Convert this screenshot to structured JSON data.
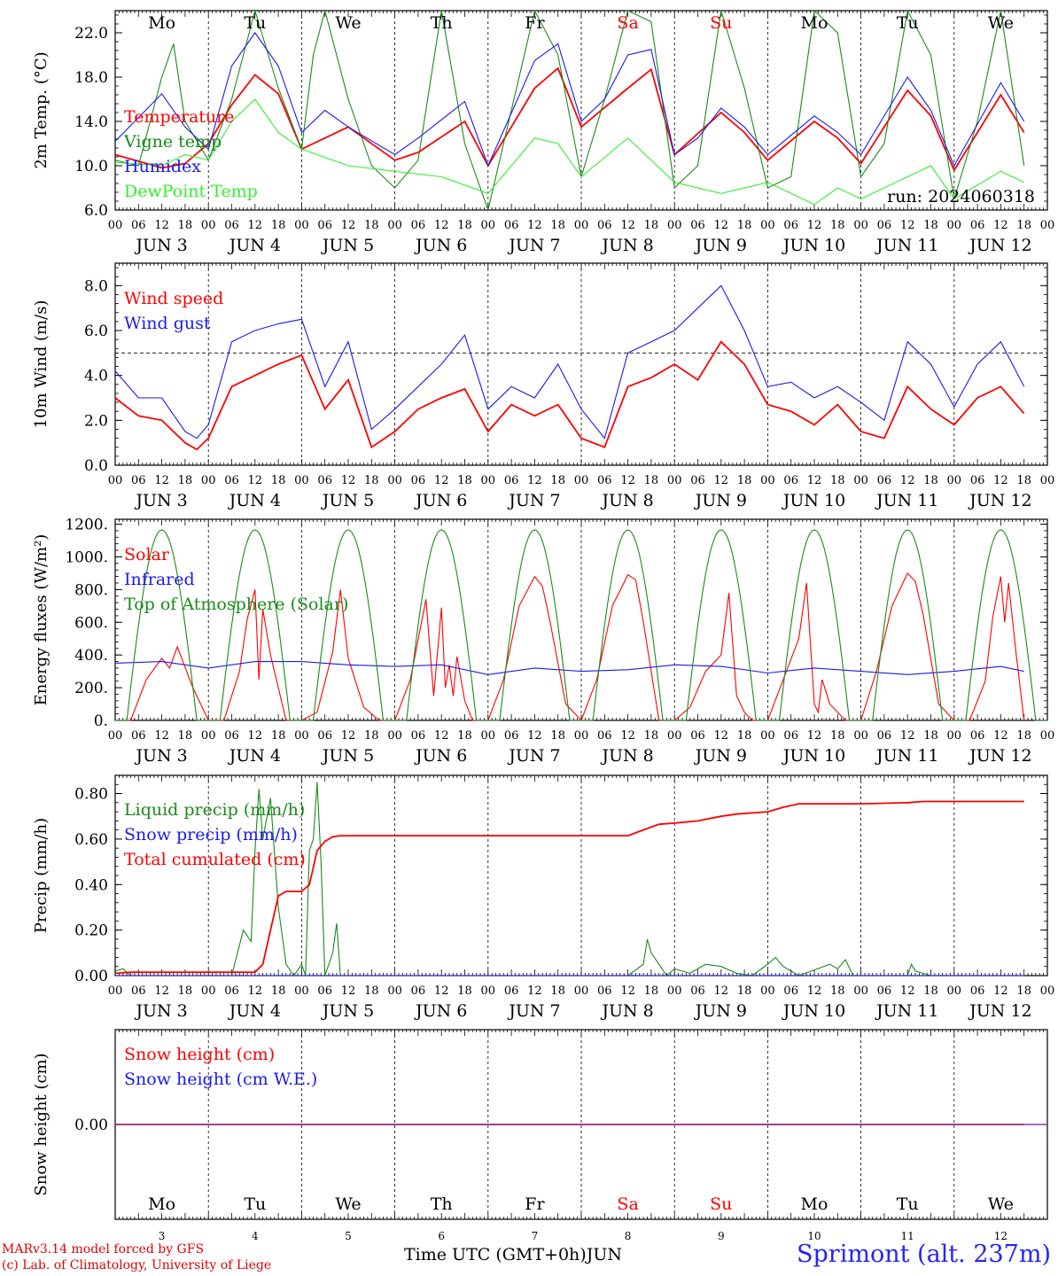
{
  "run_label": "run: 2024060318",
  "days": [
    {
      "abbr": "Mo",
      "num": "3",
      "weekend": false
    },
    {
      "abbr": "Tu",
      "num": "4",
      "weekend": false
    },
    {
      "abbr": "We",
      "num": "5",
      "weekend": false
    },
    {
      "abbr": "Th",
      "num": "6",
      "weekend": false
    },
    {
      "abbr": "Fr",
      "num": "7",
      "weekend": false
    },
    {
      "abbr": "Sa",
      "num": "8",
      "weekend": true
    },
    {
      "abbr": "Su",
      "num": "9",
      "weekend": true
    },
    {
      "abbr": "Mo",
      "num": "10",
      "weekend": false
    },
    {
      "abbr": "Tu",
      "num": "11",
      "weekend": false
    },
    {
      "abbr": "We",
      "num": "12",
      "weekend": false
    }
  ],
  "month": "JUN",
  "hour_ticks": [
    "00",
    "06",
    "12",
    "18"
  ],
  "x_axis_title": "Time UTC (GMT+0h)",
  "x_axis_month": "JUN",
  "credit_line1": "MARv3.14 model forced by GFS",
  "credit_line2": "(c) Lab. of Climatology, University of Liege",
  "station": "Sprimont (alt. 237m)",
  "colors": {
    "red": "#ff0000",
    "green": "#1a8a1a",
    "blue": "#1a1aee",
    "lightgreen": "#33ee33",
    "purple": "#8040a0"
  },
  "chart_data": [
    {
      "type": "line",
      "ylabel": "2m Temp. (°C)",
      "ylim": [
        6.0,
        24.0
      ],
      "yticks": [
        "6.0",
        "10.0",
        "14.0",
        "18.0",
        "22.0"
      ],
      "ytick_values": [
        6,
        10,
        14,
        18,
        22
      ],
      "series": [
        {
          "name": "Temperature",
          "color": "red",
          "x": [
            0,
            12,
            18,
            24,
            30,
            36,
            42,
            48,
            60,
            72,
            78,
            90,
            96,
            108,
            114,
            120,
            132,
            138,
            144,
            156,
            162,
            168,
            180,
            186,
            192,
            204,
            210,
            216,
            228,
            234
          ],
          "values": [
            11.0,
            9.8,
            10.2,
            12.0,
            15.5,
            18.2,
            16.5,
            11.5,
            13.5,
            10.5,
            11.2,
            14.0,
            10.0,
            17.0,
            18.8,
            13.5,
            17.0,
            18.7,
            11.0,
            14.8,
            13.0,
            10.5,
            14.0,
            12.5,
            10.2,
            16.8,
            14.5,
            9.6,
            16.4,
            13.0
          ]
        },
        {
          "name": "Vigne temp",
          "color": "green",
          "x": [
            0,
            6,
            12,
            15,
            18,
            24,
            30,
            36,
            42,
            48,
            51,
            54,
            60,
            66,
            72,
            78,
            84,
            90,
            96,
            102,
            108,
            114,
            120,
            126,
            132,
            138,
            144,
            150,
            156,
            162,
            168,
            174,
            180,
            186,
            192,
            198,
            204,
            210,
            216,
            222,
            228,
            234
          ],
          "values": [
            10.5,
            10.0,
            18.0,
            21.0,
            14.0,
            10.5,
            16.0,
            24.0,
            17.0,
            11.5,
            20.0,
            24.0,
            16.0,
            10.0,
            8.0,
            10.5,
            24.0,
            12.0,
            6.0,
            15.0,
            24.0,
            20.0,
            9.0,
            16.0,
            24.0,
            23.0,
            8.0,
            10.0,
            24.0,
            17.0,
            8.0,
            9.0,
            24.0,
            22.0,
            9.0,
            12.0,
            24.0,
            20.0,
            7.0,
            14.0,
            24.0,
            10.0
          ]
        },
        {
          "name": "Humidex",
          "color": "blue",
          "x": [
            0,
            12,
            18,
            24,
            30,
            36,
            42,
            48,
            54,
            60,
            72,
            78,
            90,
            96,
            108,
            114,
            120,
            126,
            132,
            138,
            144,
            150,
            156,
            162,
            168,
            180,
            186,
            192,
            204,
            210,
            216,
            228,
            234
          ],
          "values": [
            12.2,
            16.5,
            13.5,
            11.5,
            19.0,
            22.0,
            19.0,
            13.0,
            15.0,
            13.5,
            11.0,
            12.5,
            15.8,
            10.0,
            19.5,
            21.0,
            14.0,
            16.0,
            20.0,
            20.5,
            11.0,
            12.5,
            15.2,
            13.5,
            11.0,
            14.5,
            13.0,
            11.0,
            18.0,
            15.0,
            10.0,
            17.5,
            14.0
          ]
        },
        {
          "name": "DewPoint Temp",
          "color": "lightgreen",
          "x": [
            0,
            12,
            18,
            24,
            30,
            36,
            42,
            48,
            60,
            72,
            84,
            96,
            108,
            114,
            120,
            132,
            144,
            156,
            168,
            180,
            186,
            192,
            204,
            210,
            216,
            228,
            234
          ],
          "values": [
            10.3,
            10.0,
            11.0,
            10.5,
            14.0,
            16.0,
            13.0,
            11.5,
            10.0,
            9.5,
            9.0,
            7.5,
            12.5,
            12.0,
            9.0,
            12.5,
            8.5,
            7.5,
            8.5,
            6.5,
            8.0,
            7.0,
            9.0,
            10.0,
            7.0,
            9.5,
            8.5
          ]
        }
      ]
    },
    {
      "type": "line",
      "ylabel": "10m Wind (m/s)",
      "ylim": [
        0.0,
        9.0
      ],
      "yticks": [
        "0.0",
        "2.0",
        "4.0",
        "6.0",
        "8.0"
      ],
      "ytick_values": [
        0,
        2,
        4,
        6,
        8
      ],
      "reference_line": 5.0,
      "series": [
        {
          "name": "Wind speed",
          "color": "red",
          "x": [
            0,
            6,
            12,
            18,
            21,
            24,
            30,
            36,
            42,
            48,
            54,
            60,
            66,
            72,
            78,
            84,
            90,
            96,
            102,
            108,
            114,
            120,
            126,
            132,
            138,
            144,
            150,
            156,
            162,
            168,
            174,
            180,
            186,
            192,
            198,
            204,
            210,
            216,
            222,
            228,
            234
          ],
          "values": [
            3.0,
            2.2,
            2.0,
            1.0,
            0.7,
            1.2,
            3.5,
            4.0,
            4.5,
            4.9,
            2.5,
            3.8,
            0.8,
            1.5,
            2.5,
            3.0,
            3.4,
            1.5,
            2.7,
            2.2,
            2.7,
            1.2,
            0.8,
            3.5,
            3.9,
            4.5,
            3.8,
            5.5,
            4.5,
            2.7,
            2.4,
            1.8,
            2.7,
            1.5,
            1.2,
            3.5,
            2.5,
            1.8,
            3.0,
            3.5,
            2.3
          ]
        },
        {
          "name": "Wind gust",
          "color": "blue",
          "x": [
            0,
            6,
            12,
            18,
            21,
            24,
            30,
            36,
            42,
            48,
            54,
            60,
            66,
            72,
            78,
            84,
            90,
            96,
            102,
            108,
            114,
            120,
            126,
            132,
            138,
            144,
            150,
            156,
            162,
            168,
            174,
            180,
            186,
            192,
            198,
            204,
            210,
            216,
            222,
            228,
            234
          ],
          "values": [
            4.2,
            3.0,
            3.0,
            1.5,
            1.2,
            1.8,
            5.5,
            6.0,
            6.3,
            6.5,
            3.5,
            5.5,
            1.6,
            2.5,
            3.5,
            4.5,
            5.8,
            2.5,
            3.5,
            3.0,
            4.5,
            2.5,
            1.2,
            5.0,
            5.5,
            6.0,
            7.0,
            8.0,
            6.0,
            3.5,
            3.7,
            3.0,
            3.5,
            2.8,
            2.0,
            5.5,
            4.5,
            2.6,
            4.5,
            5.5,
            3.5
          ]
        }
      ]
    },
    {
      "type": "line",
      "ylabel": "Energy fluxes (W/m²)",
      "ylim": [
        0,
        1230
      ],
      "yticks": [
        "0.",
        "200.",
        "400.",
        "600.",
        "800.",
        "1000.",
        "1200."
      ],
      "ytick_values": [
        0,
        200,
        400,
        600,
        800,
        1000,
        1200
      ],
      "series": [
        {
          "name": "Solar",
          "color": "red",
          "x": [
            0,
            4,
            8,
            12,
            14,
            16,
            20,
            24,
            28,
            32,
            34,
            36,
            37,
            38,
            40,
            44,
            48,
            52,
            56,
            58,
            60,
            62,
            64,
            68,
            72,
            76,
            80,
            82,
            84,
            85,
            86,
            87,
            88,
            90,
            92,
            96,
            100,
            104,
            108,
            110,
            112,
            116,
            120,
            124,
            128,
            132,
            134,
            136,
            140,
            144,
            148,
            152,
            156,
            158,
            160,
            162,
            164,
            168,
            172,
            176,
            178,
            180,
            181,
            182,
            184,
            188,
            192,
            196,
            200,
            204,
            206,
            208,
            212,
            216,
            220,
            224,
            226,
            228,
            229,
            230,
            232,
            234
          ],
          "values": [
            0,
            0,
            250,
            380,
            320,
            450,
            200,
            0,
            0,
            300,
            620,
            800,
            250,
            680,
            400,
            0,
            0,
            50,
            420,
            800,
            380,
            230,
            80,
            0,
            0,
            250,
            740,
            150,
            690,
            200,
            340,
            150,
            390,
            120,
            0,
            0,
            250,
            700,
            880,
            820,
            600,
            100,
            0,
            250,
            700,
            890,
            860,
            600,
            0,
            0,
            80,
            300,
            400,
            780,
            150,
            50,
            0,
            0,
            250,
            500,
            840,
            100,
            50,
            250,
            100,
            0,
            0,
            300,
            700,
            900,
            850,
            650,
            100,
            0,
            0,
            240,
            640,
            880,
            600,
            840,
            400,
            0
          ]
        },
        {
          "name": "Infrared",
          "color": "blue",
          "x": [
            0,
            12,
            24,
            36,
            48,
            60,
            72,
            84,
            96,
            108,
            120,
            132,
            144,
            156,
            168,
            180,
            192,
            204,
            216,
            228,
            234
          ],
          "values": [
            350,
            360,
            320,
            360,
            360,
            340,
            330,
            340,
            280,
            320,
            300,
            310,
            340,
            330,
            290,
            320,
            300,
            280,
            300,
            330,
            300
          ]
        },
        {
          "name": "Top of Atmosphere (Solar)",
          "color": "green",
          "peak": 1165,
          "sunrise": 3,
          "sunset": 21
        }
      ]
    },
    {
      "type": "line",
      "ylabel": "Precip (mm/h)",
      "ylim": [
        0.0,
        0.88
      ],
      "yticks": [
        "0.00",
        "0.20",
        "0.40",
        "0.60",
        "0.80"
      ],
      "ytick_values": [
        0,
        0.2,
        0.4,
        0.6,
        0.8
      ],
      "series": [
        {
          "name": "Liquid precip (mm/h)",
          "color": "green",
          "x": [
            0,
            2,
            4,
            30,
            33,
            35,
            36,
            37,
            38,
            40,
            42,
            44,
            46,
            48,
            49,
            50,
            51,
            52,
            53,
            54,
            56,
            57,
            58,
            60,
            72,
            132,
            136,
            137,
            138,
            140,
            142,
            144,
            148,
            152,
            156,
            160,
            164,
            168,
            170,
            172,
            176,
            184,
            186,
            188,
            190,
            204,
            205,
            206,
            210,
            234
          ],
          "values": [
            0.02,
            0.03,
            0.0,
            0.0,
            0.2,
            0.15,
            0.55,
            0.82,
            0.6,
            0.78,
            0.3,
            0.05,
            0.0,
            0.05,
            0.0,
            0.55,
            0.6,
            0.85,
            0.5,
            0.0,
            0.1,
            0.23,
            0.0,
            0.0,
            0.0,
            0.0,
            0.05,
            0.16,
            0.1,
            0.05,
            0.0,
            0.03,
            0.01,
            0.05,
            0.04,
            0.01,
            0.0,
            0.05,
            0.08,
            0.04,
            0.0,
            0.05,
            0.03,
            0.07,
            0.0,
            0.0,
            0.05,
            0.02,
            0.0,
            0.0
          ]
        },
        {
          "name": "Snow precip (mm/h)",
          "color": "blue",
          "x": [
            0,
            234
          ],
          "values": [
            0.0,
            0.0
          ]
        },
        {
          "name": "Total cumulated (cm)",
          "color": "red",
          "x": [
            0,
            4,
            36,
            38,
            40,
            42,
            44,
            48,
            50,
            52,
            54,
            56,
            58,
            60,
            132,
            136,
            140,
            144,
            150,
            156,
            160,
            168,
            172,
            176,
            184,
            192,
            204,
            208,
            234
          ],
          "values": [
            0.01,
            0.015,
            0.015,
            0.05,
            0.2,
            0.35,
            0.37,
            0.37,
            0.4,
            0.55,
            0.59,
            0.61,
            0.615,
            0.615,
            0.615,
            0.64,
            0.665,
            0.67,
            0.68,
            0.7,
            0.71,
            0.72,
            0.74,
            0.755,
            0.755,
            0.755,
            0.76,
            0.765,
            0.765
          ]
        }
      ]
    },
    {
      "type": "line",
      "ylabel": "Snow height (cm)",
      "ytick_values": [
        0
      ],
      "yticks": [
        "0.00"
      ],
      "series": [
        {
          "name": "Snow height (cm)",
          "color": "red",
          "x": [
            0,
            234
          ],
          "values": [
            0,
            0
          ]
        },
        {
          "name": "Snow height (cm W.E.)",
          "color": "blue",
          "x": [
            0,
            234
          ],
          "values": [
            0,
            0
          ]
        }
      ]
    }
  ]
}
